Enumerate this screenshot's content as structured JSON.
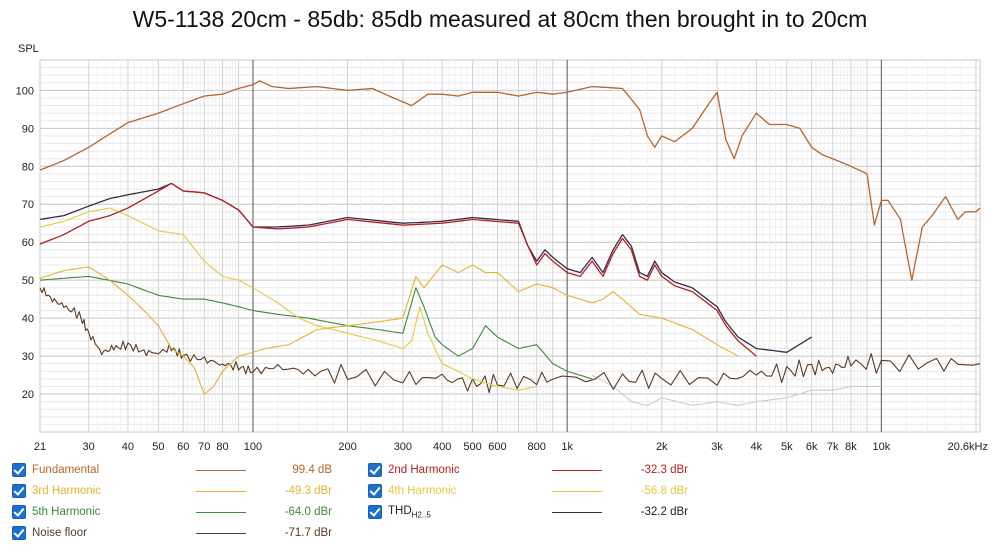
{
  "chart_data": {
    "type": "line",
    "title": "W5-1138 20cm - 85db: 85db measured at 80cm then brought in to 20cm",
    "ylabel": "SPL",
    "xunit": "Hz",
    "xscale": "log",
    "xlim": [
      21,
      20600
    ],
    "ylim": [
      10,
      108
    ],
    "grid": true,
    "x_tick_labels": [
      "21",
      "30",
      "40",
      "50",
      "60",
      "70",
      "80",
      "100",
      "200",
      "300",
      "400",
      "500",
      "600",
      "800",
      "1k",
      "2k",
      "3k",
      "4k",
      "5k",
      "6k",
      "7k",
      "8k",
      "10k",
      "20.6kHz"
    ],
    "x_tick_values": [
      21,
      30,
      40,
      50,
      60,
      70,
      80,
      100,
      200,
      300,
      400,
      500,
      600,
      800,
      1000,
      2000,
      3000,
      4000,
      5000,
      6000,
      7000,
      8000,
      10000,
      20600
    ],
    "y_ticks": [
      20,
      30,
      40,
      50,
      60,
      70,
      80,
      90,
      100
    ],
    "series": [
      {
        "name": "Fundamental",
        "color": "#b5662f",
        "value": "99.4 dB",
        "points": [
          [
            21,
            79
          ],
          [
            25,
            81.5
          ],
          [
            30,
            85
          ],
          [
            35,
            88.5
          ],
          [
            40,
            91.5
          ],
          [
            50,
            94
          ],
          [
            60,
            96.5
          ],
          [
            70,
            98.5
          ],
          [
            80,
            99
          ],
          [
            90,
            100.5
          ],
          [
            100,
            101.5
          ],
          [
            105,
            102.5
          ],
          [
            115,
            101
          ],
          [
            130,
            100.5
          ],
          [
            160,
            101
          ],
          [
            200,
            100
          ],
          [
            240,
            100.5
          ],
          [
            280,
            98
          ],
          [
            320,
            96
          ],
          [
            360,
            99
          ],
          [
            400,
            99
          ],
          [
            450,
            98.5
          ],
          [
            500,
            99.5
          ],
          [
            600,
            99.5
          ],
          [
            700,
            98.5
          ],
          [
            800,
            99.5
          ],
          [
            900,
            99
          ],
          [
            1000,
            99.5
          ],
          [
            1200,
            101
          ],
          [
            1500,
            100.5
          ],
          [
            1700,
            95
          ],
          [
            1800,
            88
          ],
          [
            1900,
            85
          ],
          [
            2000,
            88
          ],
          [
            2200,
            86.5
          ],
          [
            2500,
            90
          ],
          [
            2800,
            96
          ],
          [
            3000,
            99.5
          ],
          [
            3200,
            87
          ],
          [
            3400,
            82
          ],
          [
            3600,
            88
          ],
          [
            4000,
            94
          ],
          [
            4400,
            91
          ],
          [
            5000,
            91
          ],
          [
            5500,
            90
          ],
          [
            6000,
            85
          ],
          [
            6500,
            83
          ],
          [
            7000,
            82
          ],
          [
            8000,
            80
          ],
          [
            9000,
            78
          ],
          [
            9500,
            64.5
          ],
          [
            10000,
            71
          ],
          [
            10500,
            71
          ],
          [
            11500,
            66
          ],
          [
            12500,
            50
          ],
          [
            13500,
            64
          ],
          [
            14500,
            67
          ],
          [
            16000,
            72
          ],
          [
            17500,
            66
          ],
          [
            18500,
            68
          ],
          [
            20000,
            68
          ],
          [
            20600,
            69
          ]
        ]
      },
      {
        "name": "2nd Harmonic",
        "color": "#b52020",
        "value": "-32.3 dBr",
        "points": [
          [
            21,
            59.5
          ],
          [
            25,
            62
          ],
          [
            30,
            65.5
          ],
          [
            35,
            67
          ],
          [
            40,
            69
          ],
          [
            50,
            73.5
          ],
          [
            55,
            75.5
          ],
          [
            60,
            73.5
          ],
          [
            70,
            73
          ],
          [
            80,
            71
          ],
          [
            90,
            68.5
          ],
          [
            100,
            64
          ],
          [
            120,
            63.5
          ],
          [
            150,
            64
          ],
          [
            200,
            66
          ],
          [
            300,
            64.5
          ],
          [
            400,
            65
          ],
          [
            500,
            66
          ],
          [
            700,
            65
          ],
          [
            750,
            59
          ],
          [
            800,
            54
          ],
          [
            850,
            57
          ],
          [
            900,
            55
          ],
          [
            1000,
            52
          ],
          [
            1100,
            51
          ],
          [
            1200,
            55
          ],
          [
            1300,
            51
          ],
          [
            1400,
            57
          ],
          [
            1500,
            61
          ],
          [
            1600,
            58
          ],
          [
            1700,
            51
          ],
          [
            1800,
            50
          ],
          [
            1900,
            54
          ],
          [
            2000,
            51
          ],
          [
            2200,
            48.5
          ],
          [
            2500,
            47
          ],
          [
            3000,
            42
          ],
          [
            3200,
            38
          ],
          [
            3500,
            34
          ],
          [
            4000,
            30
          ]
        ]
      },
      {
        "name": "THD",
        "color": "#3a2a4a",
        "value": "-32.2 dBr",
        "points": [
          [
            21,
            66
          ],
          [
            25,
            67
          ],
          [
            30,
            69.5
          ],
          [
            35,
            71.5
          ],
          [
            40,
            72.5
          ],
          [
            50,
            74
          ],
          [
            55,
            75.5
          ],
          [
            60,
            73.5
          ],
          [
            70,
            73
          ],
          [
            80,
            71
          ],
          [
            90,
            68.5
          ],
          [
            100,
            64
          ],
          [
            120,
            64
          ],
          [
            150,
            64.5
          ],
          [
            200,
            66.5
          ],
          [
            300,
            65
          ],
          [
            400,
            65.5
          ],
          [
            500,
            66.5
          ],
          [
            700,
            65.5
          ],
          [
            750,
            59
          ],
          [
            800,
            55
          ],
          [
            850,
            58
          ],
          [
            900,
            56
          ],
          [
            1000,
            53
          ],
          [
            1100,
            52
          ],
          [
            1200,
            56
          ],
          [
            1300,
            52
          ],
          [
            1400,
            58
          ],
          [
            1500,
            62
          ],
          [
            1600,
            59
          ],
          [
            1700,
            52
          ],
          [
            1800,
            51
          ],
          [
            1900,
            55
          ],
          [
            2000,
            52
          ],
          [
            2200,
            49.5
          ],
          [
            2500,
            48
          ],
          [
            3000,
            43
          ],
          [
            3200,
            39
          ],
          [
            3500,
            35
          ],
          [
            4000,
            32
          ],
          [
            5000,
            31
          ],
          [
            6000,
            35
          ]
        ]
      },
      {
        "name": "3rd Harmonic",
        "color": "#e8b030",
        "value": "-49.3 dBr",
        "points": [
          [
            21,
            50.5
          ],
          [
            25,
            52.5
          ],
          [
            30,
            53.5
          ],
          [
            35,
            50
          ],
          [
            40,
            46
          ],
          [
            45,
            42
          ],
          [
            50,
            38
          ],
          [
            55,
            32
          ],
          [
            60,
            30
          ],
          [
            65,
            27
          ],
          [
            70,
            20
          ],
          [
            75,
            22
          ],
          [
            80,
            26
          ],
          [
            90,
            30
          ],
          [
            100,
            31
          ],
          [
            110,
            32
          ],
          [
            130,
            33
          ],
          [
            160,
            37
          ],
          [
            200,
            38
          ],
          [
            250,
            39
          ],
          [
            300,
            40
          ],
          [
            330,
            51
          ],
          [
            350,
            48
          ],
          [
            400,
            54
          ],
          [
            450,
            52
          ],
          [
            500,
            54
          ],
          [
            550,
            52
          ],
          [
            600,
            52
          ],
          [
            700,
            47
          ],
          [
            800,
            49
          ],
          [
            900,
            48
          ],
          [
            1000,
            46
          ],
          [
            1100,
            45
          ],
          [
            1200,
            44
          ],
          [
            1300,
            45
          ],
          [
            1400,
            47
          ],
          [
            1500,
            45
          ],
          [
            1700,
            41
          ],
          [
            2000,
            40
          ],
          [
            2500,
            37
          ],
          [
            3000,
            33
          ],
          [
            3500,
            30
          ]
        ]
      },
      {
        "name": "4th Harmonic",
        "color": "#e8c840",
        "value": "-56.8 dBr",
        "points": [
          [
            21,
            64
          ],
          [
            25,
            65.5
          ],
          [
            30,
            68
          ],
          [
            35,
            69
          ],
          [
            40,
            67
          ],
          [
            50,
            63
          ],
          [
            60,
            62
          ],
          [
            70,
            55
          ],
          [
            80,
            51
          ],
          [
            90,
            50
          ],
          [
            100,
            48
          ],
          [
            120,
            44
          ],
          [
            140,
            40
          ],
          [
            160,
            38
          ],
          [
            200,
            36
          ],
          [
            250,
            34
          ],
          [
            300,
            32
          ],
          [
            320,
            34
          ],
          [
            340,
            43
          ],
          [
            360,
            36
          ],
          [
            400,
            28
          ],
          [
            450,
            26
          ],
          [
            500,
            24
          ],
          [
            600,
            22
          ],
          [
            700,
            21
          ],
          [
            800,
            22
          ]
        ]
      },
      {
        "name": "5th Harmonic",
        "color": "#3c8a3c",
        "value": "-64.0 dBr",
        "points": [
          [
            21,
            50
          ],
          [
            25,
            50.5
          ],
          [
            30,
            51
          ],
          [
            40,
            49
          ],
          [
            50,
            46
          ],
          [
            60,
            45
          ],
          [
            70,
            45
          ],
          [
            80,
            44
          ],
          [
            90,
            43
          ],
          [
            100,
            42
          ],
          [
            120,
            41
          ],
          [
            150,
            40
          ],
          [
            200,
            38
          ],
          [
            250,
            37
          ],
          [
            300,
            36
          ],
          [
            330,
            48
          ],
          [
            350,
            43
          ],
          [
            380,
            35
          ],
          [
            400,
            33
          ],
          [
            450,
            30
          ],
          [
            500,
            32
          ],
          [
            550,
            38
          ],
          [
            600,
            35
          ],
          [
            700,
            32
          ],
          [
            800,
            33
          ],
          [
            900,
            28
          ],
          [
            1000,
            26
          ],
          [
            1200,
            24
          ]
        ]
      },
      {
        "name": "Noise floor",
        "color": "#5a3a22",
        "value": "-71.7 dBr",
        "points": [
          [
            21,
            48
          ],
          [
            23,
            45
          ],
          [
            25,
            43
          ],
          [
            28,
            41
          ],
          [
            30,
            36
          ],
          [
            33,
            31
          ],
          [
            36,
            32
          ],
          [
            40,
            33
          ],
          [
            45,
            31
          ],
          [
            50,
            31
          ],
          [
            55,
            32
          ],
          [
            60,
            30
          ],
          [
            70,
            29
          ],
          [
            80,
            28
          ],
          [
            90,
            27
          ],
          [
            100,
            26
          ],
          [
            120,
            27
          ],
          [
            150,
            26
          ],
          [
            200,
            25
          ],
          [
            300,
            24
          ],
          [
            400,
            24
          ],
          [
            500,
            23
          ],
          [
            600,
            23
          ],
          [
            800,
            24
          ],
          [
            1000,
            24
          ],
          [
            1500,
            24
          ],
          [
            2000,
            24
          ],
          [
            3000,
            24
          ],
          [
            4000,
            25
          ],
          [
            5000,
            26
          ],
          [
            6000,
            27
          ],
          [
            7000,
            27
          ],
          [
            8000,
            28
          ],
          [
            10000,
            28
          ],
          [
            15000,
            28
          ],
          [
            20600,
            28
          ]
        ]
      },
      {
        "name": "",
        "color": "#cccccc",
        "points": [
          [
            1200,
            25
          ],
          [
            1400,
            22
          ],
          [
            1600,
            18
          ],
          [
            1800,
            17
          ],
          [
            2000,
            19
          ],
          [
            2500,
            17
          ],
          [
            3000,
            18
          ],
          [
            3500,
            17
          ],
          [
            4000,
            18
          ],
          [
            5000,
            19
          ],
          [
            6000,
            21
          ],
          [
            7000,
            21
          ],
          [
            8000,
            22
          ],
          [
            10000,
            22
          ]
        ]
      }
    ]
  }
}
